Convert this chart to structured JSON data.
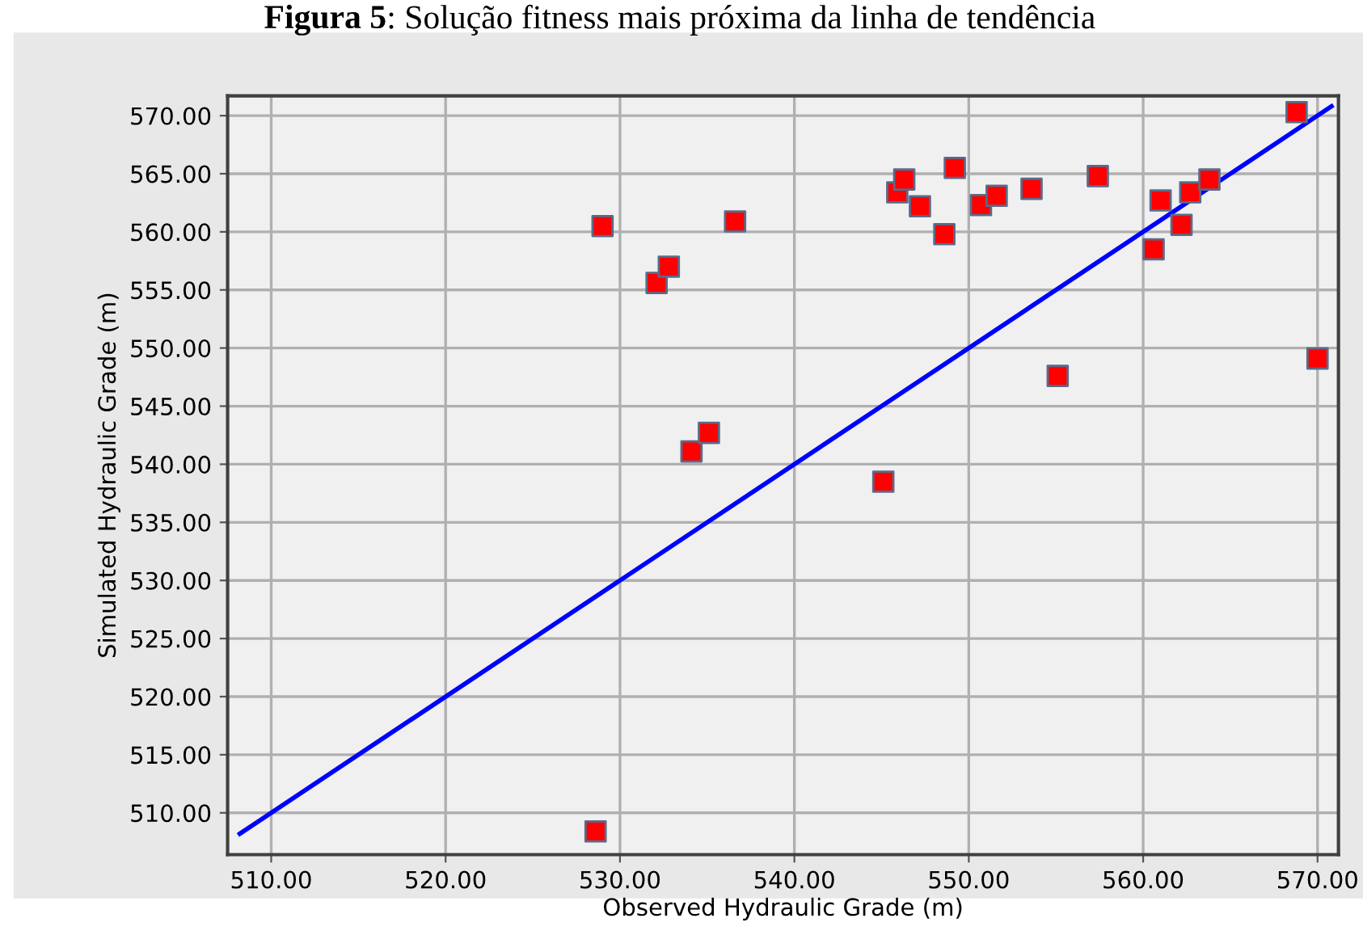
{
  "chart_data": {
    "type": "scatter",
    "title": "Figura 5: Solução fitness mais próxima da linha de tendência",
    "xlabel": "Observed Hydraulic Grade (m)",
    "ylabel": "Simulated Hydraulic Grade (m)",
    "series": [
      {
        "color": "#ff0000",
        "marker": "square",
        "x": [
          529.0,
          532.1,
          532.8,
          534.1,
          535.1,
          536.6,
          528.6,
          545.1,
          545.9,
          546.3,
          547.2,
          548.6,
          549.2,
          550.7,
          551.6,
          553.6,
          555.1,
          557.4,
          560.6,
          561.0,
          562.2,
          562.7,
          563.8,
          568.8,
          570.0
        ],
        "values": [
          560.5,
          555.6,
          557.0,
          541.1,
          542.7,
          560.9,
          508.4,
          538.5,
          563.4,
          564.5,
          562.2,
          559.8,
          565.5,
          562.3,
          563.1,
          563.7,
          547.6,
          564.8,
          558.5,
          562.7,
          560.6,
          563.4,
          564.5,
          570.3,
          549.1
        ]
      },
      {
        "type": "line",
        "color": "#0000ff",
        "marker": "none",
        "line_style": "solid",
        "x": [
          508.2,
          570.8
        ],
        "values": [
          508.2,
          570.8
        ]
      }
    ],
    "xlim": [
      507.5,
      571.2
    ],
    "ylim": [
      506.4,
      571.7
    ],
    "xticks": [
      {
        "value": 510,
        "label": "510.00"
      },
      {
        "value": 520,
        "label": "520.00"
      },
      {
        "value": 530,
        "label": "530.00"
      },
      {
        "value": 540,
        "label": "540.00"
      },
      {
        "value": 550,
        "label": "550.00"
      },
      {
        "value": 560,
        "label": "560.00"
      },
      {
        "value": 570,
        "label": "570.00"
      }
    ],
    "yticks": [
      {
        "value": 510,
        "label": "510.00"
      },
      {
        "value": 515,
        "label": "515.00"
      },
      {
        "value": 520,
        "label": "520.00"
      },
      {
        "value": 525,
        "label": "525.00"
      },
      {
        "value": 530,
        "label": "530.00"
      },
      {
        "value": 535,
        "label": "535.00"
      },
      {
        "value": 540,
        "label": "540.00"
      },
      {
        "value": 545,
        "label": "545.00"
      },
      {
        "value": 550,
        "label": "550.00"
      },
      {
        "value": 555,
        "label": "555.00"
      },
      {
        "value": 560,
        "label": "560.00"
      },
      {
        "value": 565,
        "label": "565.00"
      },
      {
        "value": 570,
        "label": "570.00"
      }
    ],
    "grid": true
  }
}
